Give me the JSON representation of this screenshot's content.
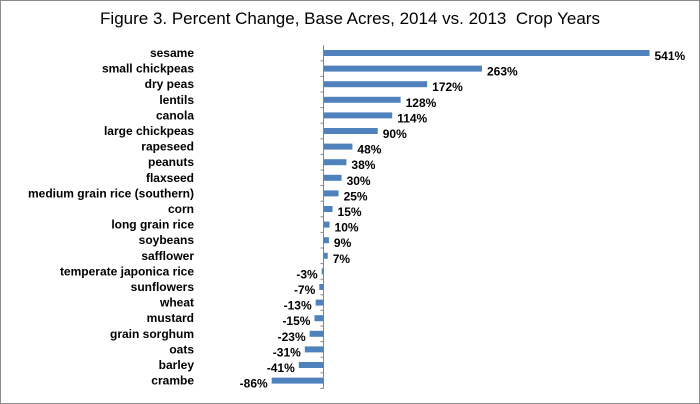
{
  "chart_data": {
    "type": "bar",
    "orientation": "horizontal",
    "title": "Figure 3. Percent Change, Base Acres, 2014 vs. 2013  Crop Years",
    "xlabel": "",
    "ylabel": "",
    "bar_color": "#4f81bd",
    "grid": false,
    "legend": "none",
    "xlim": [
      -90,
      545
    ],
    "categories": [
      "sesame",
      "small chickpeas",
      "dry peas",
      "lentils",
      "canola",
      "large chickpeas",
      "rapeseed",
      "peanuts",
      "flaxseed",
      "medium grain rice (southern)",
      "corn",
      "long grain rice",
      "soybeans",
      "safflower",
      "temperate japonica rice",
      "sunflowers",
      "wheat",
      "mustard",
      "grain sorghum",
      "oats",
      "barley",
      "crambe"
    ],
    "values": [
      541,
      263,
      172,
      128,
      114,
      90,
      48,
      38,
      30,
      25,
      15,
      10,
      9,
      7,
      -3,
      -7,
      -13,
      -15,
      -23,
      -31,
      -41,
      -86
    ],
    "data_labels": [
      "541%",
      "263%",
      "172%",
      "128%",
      "114%",
      "90%",
      "48%",
      "38%",
      "30%",
      "25%",
      "15%",
      "10%",
      "9%",
      "7%",
      "-3%",
      "-7%",
      "-13%",
      "-15%",
      "-23%",
      "-31%",
      "-41%",
      "-86%"
    ]
  }
}
